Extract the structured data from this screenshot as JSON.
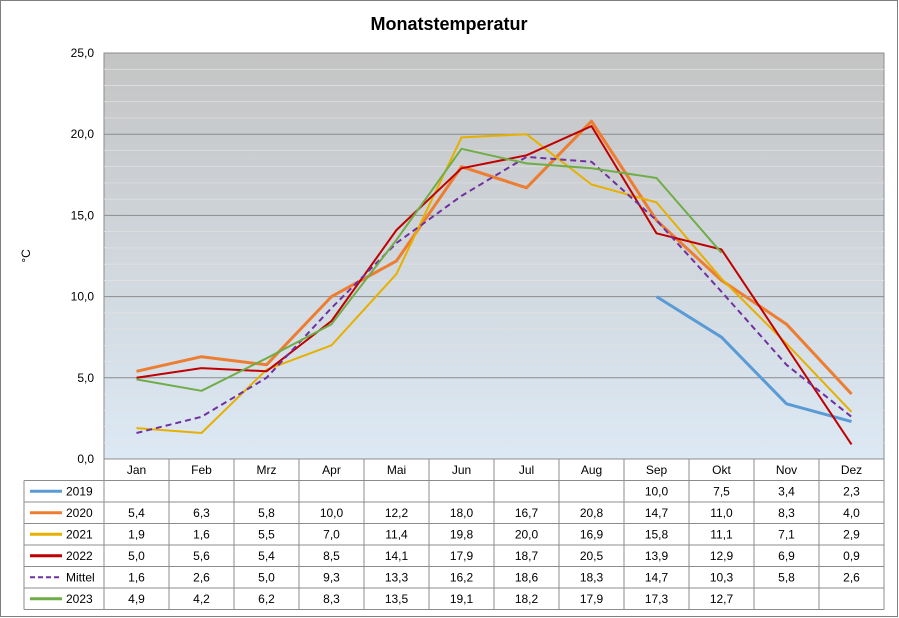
{
  "chart_data": {
    "type": "line",
    "title": "Monatstemperatur",
    "xlabel": "",
    "ylabel": "°C",
    "ylim": [
      0,
      25
    ],
    "yticks": [
      "0,0",
      "5,0",
      "10,0",
      "15,0",
      "20,0",
      "25,0"
    ],
    "ytick_values": [
      0,
      5,
      10,
      15,
      20,
      25
    ],
    "grid": true,
    "legend": "data-table-below",
    "categories": [
      "Jan",
      "Feb",
      "Mrz",
      "Apr",
      "Mai",
      "Jun",
      "Jul",
      "Aug",
      "Sep",
      "Okt",
      "Nov",
      "Dez"
    ],
    "series": [
      {
        "name": "2019",
        "color": "#5b9bd5",
        "dashed": false,
        "values": [
          null,
          null,
          null,
          null,
          null,
          null,
          null,
          null,
          10.0,
          7.5,
          3.4,
          2.3
        ],
        "labels": [
          "",
          "",
          "",
          "",
          "",
          "",
          "",
          "",
          "10,0",
          "7,5",
          "3,4",
          "2,3"
        ]
      },
      {
        "name": "2020",
        "color": "#ed7d31",
        "dashed": false,
        "values": [
          5.4,
          6.3,
          5.8,
          10.0,
          12.2,
          18.0,
          16.7,
          20.8,
          14.7,
          11.0,
          8.3,
          4.0
        ],
        "labels": [
          "5,4",
          "6,3",
          "5,8",
          "10,0",
          "12,2",
          "18,0",
          "16,7",
          "20,8",
          "14,7",
          "11,0",
          "8,3",
          "4,0"
        ]
      },
      {
        "name": "2021",
        "color": "#e6b000",
        "dashed": false,
        "values": [
          1.9,
          1.6,
          5.5,
          7.0,
          11.4,
          19.8,
          20.0,
          16.9,
          15.8,
          11.1,
          7.1,
          2.9
        ],
        "labels": [
          "1,9",
          "1,6",
          "5,5",
          "7,0",
          "11,4",
          "19,8",
          "20,0",
          "16,9",
          "15,8",
          "11,1",
          "7,1",
          "2,9"
        ]
      },
      {
        "name": "2022",
        "color": "#c00000",
        "dashed": false,
        "values": [
          5.0,
          5.6,
          5.4,
          8.5,
          14.1,
          17.9,
          18.7,
          20.5,
          13.9,
          12.9,
          6.9,
          0.9
        ],
        "labels": [
          "5,0",
          "5,6",
          "5,4",
          "8,5",
          "14,1",
          "17,9",
          "18,7",
          "20,5",
          "13,9",
          "12,9",
          "6,9",
          "0,9"
        ]
      },
      {
        "name": "Mittel",
        "color": "#7030a0",
        "dashed": true,
        "values": [
          1.6,
          2.6,
          5.0,
          9.3,
          13.3,
          16.2,
          18.6,
          18.3,
          14.7,
          10.3,
          5.8,
          2.6
        ],
        "labels": [
          "1,6",
          "2,6",
          "5,0",
          "9,3",
          "13,3",
          "16,2",
          "18,6",
          "18,3",
          "14,7",
          "10,3",
          "5,8",
          "2,6"
        ]
      },
      {
        "name": "2023",
        "color": "#70ad47",
        "dashed": false,
        "values": [
          4.9,
          4.2,
          6.2,
          8.3,
          13.5,
          19.1,
          18.2,
          17.9,
          17.3,
          12.7,
          null,
          null
        ],
        "labels": [
          "4,9",
          "4,2",
          "6,2",
          "8,3",
          "13,5",
          "19,1",
          "18,2",
          "17,9",
          "17,3",
          "12,7",
          "",
          ""
        ]
      }
    ]
  }
}
